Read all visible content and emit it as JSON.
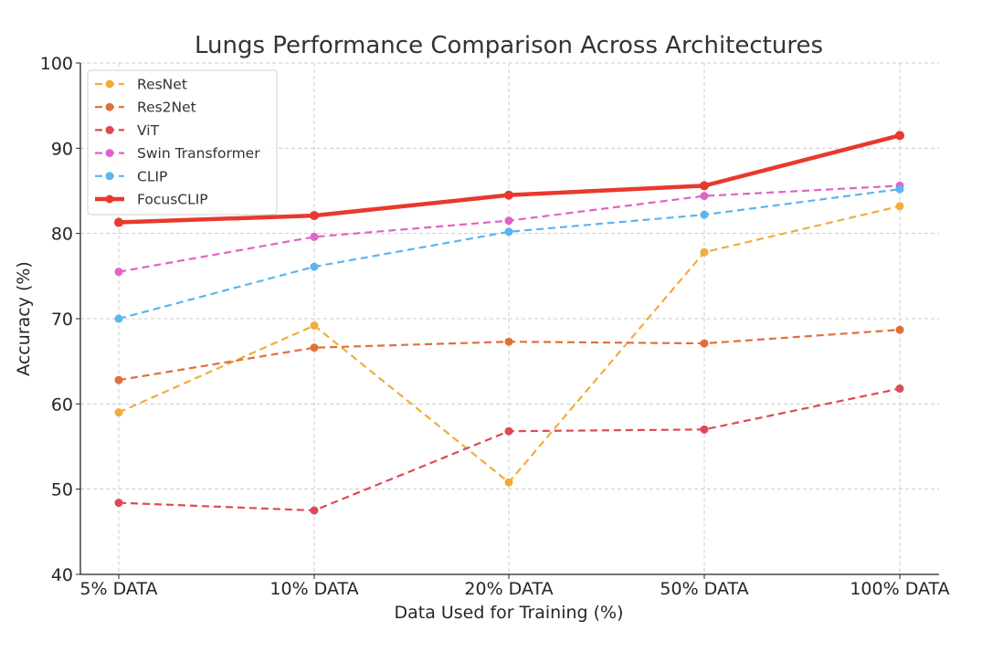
{
  "chart_data": {
    "type": "line",
    "title": "Lungs Performance Comparison Across Architectures",
    "xlabel": "Data Used for Training (%)",
    "ylabel": "Accuracy (%)",
    "categories": [
      "5% DATA",
      "10% DATA",
      "20% DATA",
      "50% DATA",
      "100% DATA"
    ],
    "ylim": [
      40,
      100
    ],
    "yticks": [
      40,
      50,
      60,
      70,
      80,
      90,
      100
    ],
    "grid": true,
    "legend_position": "top-left",
    "series": [
      {
        "name": "ResNet",
        "color": "#f0ad3a",
        "style": "dashed",
        "values": [
          59.0,
          69.2,
          50.8,
          77.8,
          83.2
        ]
      },
      {
        "name": "Res2Net",
        "color": "#e0703a",
        "style": "dashed",
        "values": [
          62.8,
          66.6,
          67.3,
          67.1,
          68.7
        ]
      },
      {
        "name": "ViT",
        "color": "#dd4a55",
        "style": "dashed",
        "values": [
          48.4,
          47.5,
          56.8,
          57.0,
          61.8
        ]
      },
      {
        "name": "Swin Transformer",
        "color": "#e163c6",
        "style": "dashed",
        "values": [
          75.5,
          79.6,
          81.5,
          84.4,
          85.6
        ]
      },
      {
        "name": "CLIP",
        "color": "#5bb5ee",
        "style": "dashed",
        "values": [
          70.0,
          76.1,
          80.2,
          82.2,
          85.2
        ]
      },
      {
        "name": "FocusCLIP",
        "color": "#e8392d",
        "style": "solid",
        "values": [
          81.3,
          82.1,
          84.5,
          85.6,
          91.5
        ]
      }
    ]
  }
}
